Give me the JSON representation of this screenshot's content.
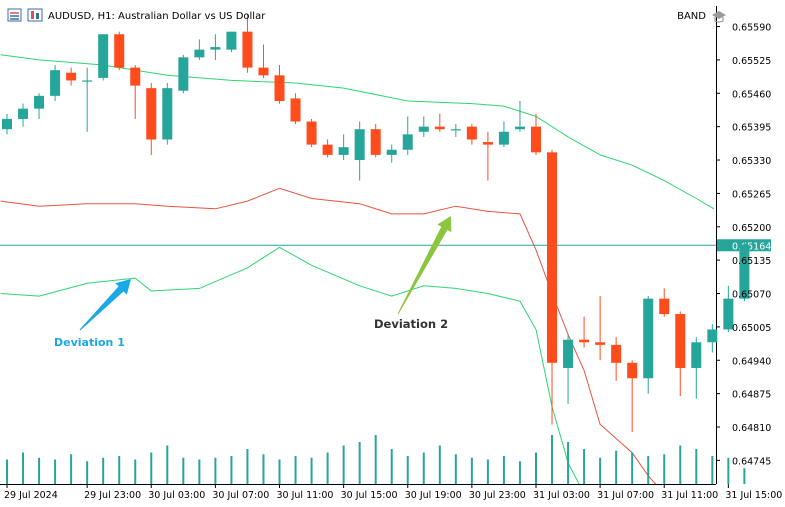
{
  "header": {
    "symbol_title": "AUDUSD, H1:  Australian Dollar vs US Dollar",
    "indicator": "BAND"
  },
  "colors": {
    "bull": "#26a69a",
    "bear": "#ff4c1c",
    "wick": "#000000",
    "band_outer": "#2ed573",
    "band_mid": "#e8533f",
    "current_line": "#26a69a",
    "volume": "#26a69a",
    "arrow1": "#1aa8e6",
    "arrow2": "#8cc63f",
    "label1": "#1aa8e6",
    "label2": "#333333"
  },
  "chart_data": {
    "type": "candlestick",
    "price_axis": {
      "ylim": [
        0.64699,
        0.6563
      ],
      "ticks": [
        "0.65590",
        "0.65525",
        "0.65460",
        "0.65395",
        "0.65330",
        "0.65265",
        "0.65200",
        "0.65135",
        "0.65070",
        "0.65005",
        "0.64940",
        "0.64875",
        "0.64810",
        "0.64745"
      ]
    },
    "current_price": {
      "value": 0.65164,
      "label": "0.65164"
    },
    "time_labels": [
      {
        "index": 0,
        "label": "29 Jul 2024"
      },
      {
        "index": 5,
        "label": "29 Jul 23:00"
      },
      {
        "index": 9,
        "label": "30 Jul 03:00"
      },
      {
        "index": 13,
        "label": "30 Jul 07:00"
      },
      {
        "index": 17,
        "label": "30 Jul 11:00"
      },
      {
        "index": 21,
        "label": "30 Jul 15:00"
      },
      {
        "index": 25,
        "label": "30 Jul 19:00"
      },
      {
        "index": 29,
        "label": "30 Jul 23:00"
      },
      {
        "index": 33,
        "label": "31 Jul 03:00"
      },
      {
        "index": 37,
        "label": "31 Jul 07:00"
      },
      {
        "index": 41,
        "label": "31 Jul 11:00"
      },
      {
        "index": 45,
        "label": "31 Jul 15:00"
      }
    ],
    "candles": [
      {
        "o": 0.6539,
        "h": 0.6542,
        "l": 0.6538,
        "c": 0.6541
      },
      {
        "o": 0.6541,
        "h": 0.6544,
        "l": 0.65395,
        "c": 0.6543
      },
      {
        "o": 0.6543,
        "h": 0.6546,
        "l": 0.6541,
        "c": 0.65455
      },
      {
        "o": 0.65455,
        "h": 0.65515,
        "l": 0.65445,
        "c": 0.65505
      },
      {
        "o": 0.655,
        "h": 0.6551,
        "l": 0.65475,
        "c": 0.65485
      },
      {
        "o": 0.65485,
        "h": 0.6551,
        "l": 0.65385,
        "c": 0.65485
      },
      {
        "o": 0.6549,
        "h": 0.6557,
        "l": 0.65485,
        "c": 0.65575
      },
      {
        "o": 0.65575,
        "h": 0.6558,
        "l": 0.65505,
        "c": 0.6551
      },
      {
        "o": 0.6551,
        "h": 0.65515,
        "l": 0.6541,
        "c": 0.65475
      },
      {
        "o": 0.6547,
        "h": 0.6548,
        "l": 0.6534,
        "c": 0.6537
      },
      {
        "o": 0.6537,
        "h": 0.6548,
        "l": 0.6536,
        "c": 0.6547
      },
      {
        "o": 0.65465,
        "h": 0.65535,
        "l": 0.6546,
        "c": 0.6553
      },
      {
        "o": 0.6553,
        "h": 0.65565,
        "l": 0.65525,
        "c": 0.65545
      },
      {
        "o": 0.65545,
        "h": 0.65575,
        "l": 0.65525,
        "c": 0.6555
      },
      {
        "o": 0.65545,
        "h": 0.6558,
        "l": 0.6554,
        "c": 0.6558
      },
      {
        "o": 0.6558,
        "h": 0.65615,
        "l": 0.655,
        "c": 0.6551
      },
      {
        "o": 0.6551,
        "h": 0.65555,
        "l": 0.6549,
        "c": 0.65495
      },
      {
        "o": 0.65495,
        "h": 0.65515,
        "l": 0.6544,
        "c": 0.65445
      },
      {
        "o": 0.6545,
        "h": 0.6546,
        "l": 0.654,
        "c": 0.65405
      },
      {
        "o": 0.65405,
        "h": 0.6541,
        "l": 0.65355,
        "c": 0.6536
      },
      {
        "o": 0.6536,
        "h": 0.6537,
        "l": 0.65335,
        "c": 0.6534
      },
      {
        "o": 0.6534,
        "h": 0.6538,
        "l": 0.6533,
        "c": 0.65355
      },
      {
        "o": 0.6533,
        "h": 0.65405,
        "l": 0.6529,
        "c": 0.6539
      },
      {
        "o": 0.6539,
        "h": 0.654,
        "l": 0.65335,
        "c": 0.6534
      },
      {
        "o": 0.6534,
        "h": 0.6536,
        "l": 0.65325,
        "c": 0.6535
      },
      {
        "o": 0.6535,
        "h": 0.65415,
        "l": 0.6534,
        "c": 0.6538
      },
      {
        "o": 0.65385,
        "h": 0.65415,
        "l": 0.65375,
        "c": 0.65395
      },
      {
        "o": 0.65395,
        "h": 0.6542,
        "l": 0.65385,
        "c": 0.6539
      },
      {
        "o": 0.6539,
        "h": 0.654,
        "l": 0.65375,
        "c": 0.6539
      },
      {
        "o": 0.65395,
        "h": 0.654,
        "l": 0.6536,
        "c": 0.6537
      },
      {
        "o": 0.65365,
        "h": 0.65385,
        "l": 0.6529,
        "c": 0.6536
      },
      {
        "o": 0.6536,
        "h": 0.65405,
        "l": 0.65355,
        "c": 0.65385
      },
      {
        "o": 0.6539,
        "h": 0.65445,
        "l": 0.65385,
        "c": 0.65395
      },
      {
        "o": 0.65395,
        "h": 0.6542,
        "l": 0.6534,
        "c": 0.65345
      },
      {
        "o": 0.65345,
        "h": 0.6535,
        "l": 0.64815,
        "c": 0.64935
      },
      {
        "o": 0.64925,
        "h": 0.6499,
        "l": 0.64855,
        "c": 0.6498
      },
      {
        "o": 0.6498,
        "h": 0.65025,
        "l": 0.64965,
        "c": 0.64975
      },
      {
        "o": 0.64975,
        "h": 0.65065,
        "l": 0.6494,
        "c": 0.6497
      },
      {
        "o": 0.6497,
        "h": 0.64985,
        "l": 0.649,
        "c": 0.64935
      },
      {
        "o": 0.64935,
        "h": 0.6494,
        "l": 0.648,
        "c": 0.64905
      },
      {
        "o": 0.64905,
        "h": 0.65065,
        "l": 0.64875,
        "c": 0.6506
      },
      {
        "o": 0.6506,
        "h": 0.6508,
        "l": 0.65025,
        "c": 0.6503
      },
      {
        "o": 0.6503,
        "h": 0.65035,
        "l": 0.6487,
        "c": 0.64925
      },
      {
        "o": 0.64925,
        "h": 0.64985,
        "l": 0.64865,
        "c": 0.64975
      },
      {
        "o": 0.64975,
        "h": 0.6501,
        "l": 0.64955,
        "c": 0.65
      },
      {
        "o": 0.65,
        "h": 0.65085,
        "l": 0.64995,
        "c": 0.6506
      },
      {
        "o": 0.6506,
        "h": 0.65175,
        "l": 0.65055,
        "c": 0.65165
      }
    ],
    "upper_band": [
      [
        -0.4,
        0.65535
      ],
      [
        2,
        0.65525
      ],
      [
        6,
        0.65515
      ],
      [
        10,
        0.65495
      ],
      [
        14,
        0.65485
      ],
      [
        18,
        0.6548
      ],
      [
        21,
        0.6547
      ],
      [
        25,
        0.65445
      ],
      [
        29,
        0.6544
      ],
      [
        31,
        0.65435
      ],
      [
        33,
        0.65415
      ],
      [
        35,
        0.65375
      ],
      [
        37,
        0.6534
      ],
      [
        39,
        0.6532
      ],
      [
        41,
        0.6529
      ],
      [
        43,
        0.65255
      ],
      [
        44.1,
        0.65235
      ]
    ],
    "middle_band": [
      [
        -0.4,
        0.6525
      ],
      [
        2,
        0.6524
      ],
      [
        5,
        0.65245
      ],
      [
        8,
        0.65245
      ],
      [
        10,
        0.6524
      ],
      [
        13,
        0.65235
      ],
      [
        15,
        0.6525
      ],
      [
        17,
        0.65275
      ],
      [
        19,
        0.65255
      ],
      [
        22,
        0.65245
      ],
      [
        24,
        0.65225
      ],
      [
        26,
        0.65225
      ],
      [
        28,
        0.6524
      ],
      [
        30,
        0.6523
      ],
      [
        32,
        0.65225
      ],
      [
        33,
        0.65155
      ],
      [
        34,
        0.6507
      ],
      [
        35,
        0.6499
      ],
      [
        36,
        0.6492
      ],
      [
        37,
        0.64815
      ],
      [
        39,
        0.6476
      ],
      [
        40,
        0.64715
      ],
      [
        41,
        0.6468
      ]
    ],
    "lower_band": [
      [
        -0.4,
        0.6507
      ],
      [
        2,
        0.65065
      ],
      [
        5,
        0.6509
      ],
      [
        8,
        0.651
      ],
      [
        9,
        0.65075
      ],
      [
        12,
        0.6508
      ],
      [
        15,
        0.6512
      ],
      [
        17,
        0.6516
      ],
      [
        19,
        0.65125
      ],
      [
        22,
        0.65085
      ],
      [
        24,
        0.65065
      ],
      [
        26,
        0.65085
      ],
      [
        28,
        0.6508
      ],
      [
        30,
        0.6507
      ],
      [
        32,
        0.65055
      ],
      [
        33,
        0.65
      ],
      [
        34,
        0.6485
      ],
      [
        35,
        0.6474
      ],
      [
        36,
        0.6468
      ]
    ],
    "volumes": [
      14,
      18,
      15,
      14,
      17,
      13,
      15,
      16,
      14,
      18,
      22,
      15,
      14,
      15,
      16,
      20,
      17,
      14,
      16,
      15,
      18,
      22,
      24,
      28,
      20,
      16,
      18,
      22,
      17,
      15,
      14,
      16,
      13,
      18,
      28,
      24,
      20,
      15,
      19,
      18,
      16,
      17,
      22,
      20,
      16,
      15,
      9
    ]
  },
  "annotations": [
    {
      "label": "Deviation 1"
    },
    {
      "label": "Deviation 2"
    }
  ]
}
